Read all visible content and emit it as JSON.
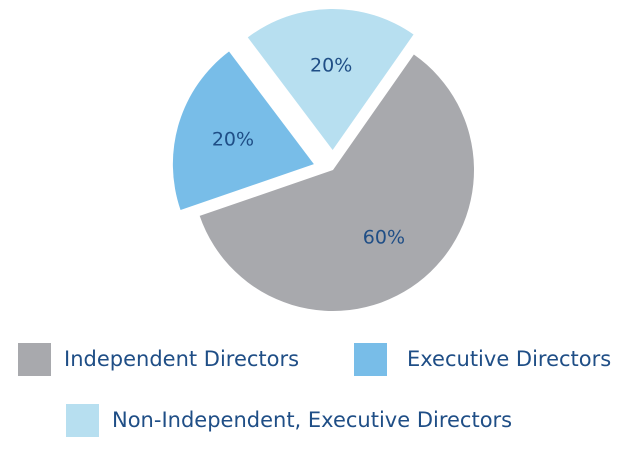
{
  "chart_data": {
    "type": "pie",
    "title": "",
    "series": [
      {
        "name": "Independent Directors",
        "value": 60,
        "label": "60%",
        "color": "#a8a9ad"
      },
      {
        "name": "Executive Directors",
        "value": 20,
        "label": "20%",
        "color": "#78bde8"
      },
      {
        "name": "Non-Independent, Executive Directors",
        "value": 20,
        "label": "20%",
        "color": "#b7dff0"
      }
    ],
    "exploded": [
      "Executive Directors",
      "Non-Independent, Executive Directors"
    ],
    "legend_placement": "bottom"
  },
  "legend": {
    "items": [
      {
        "label": "Independent Directors",
        "color": "#a8a9ad"
      },
      {
        "label": "Executive Directors",
        "color": "#78bde8"
      },
      {
        "label": "Non-Independent, Executive Directors",
        "color": "#b7dff0"
      }
    ]
  }
}
